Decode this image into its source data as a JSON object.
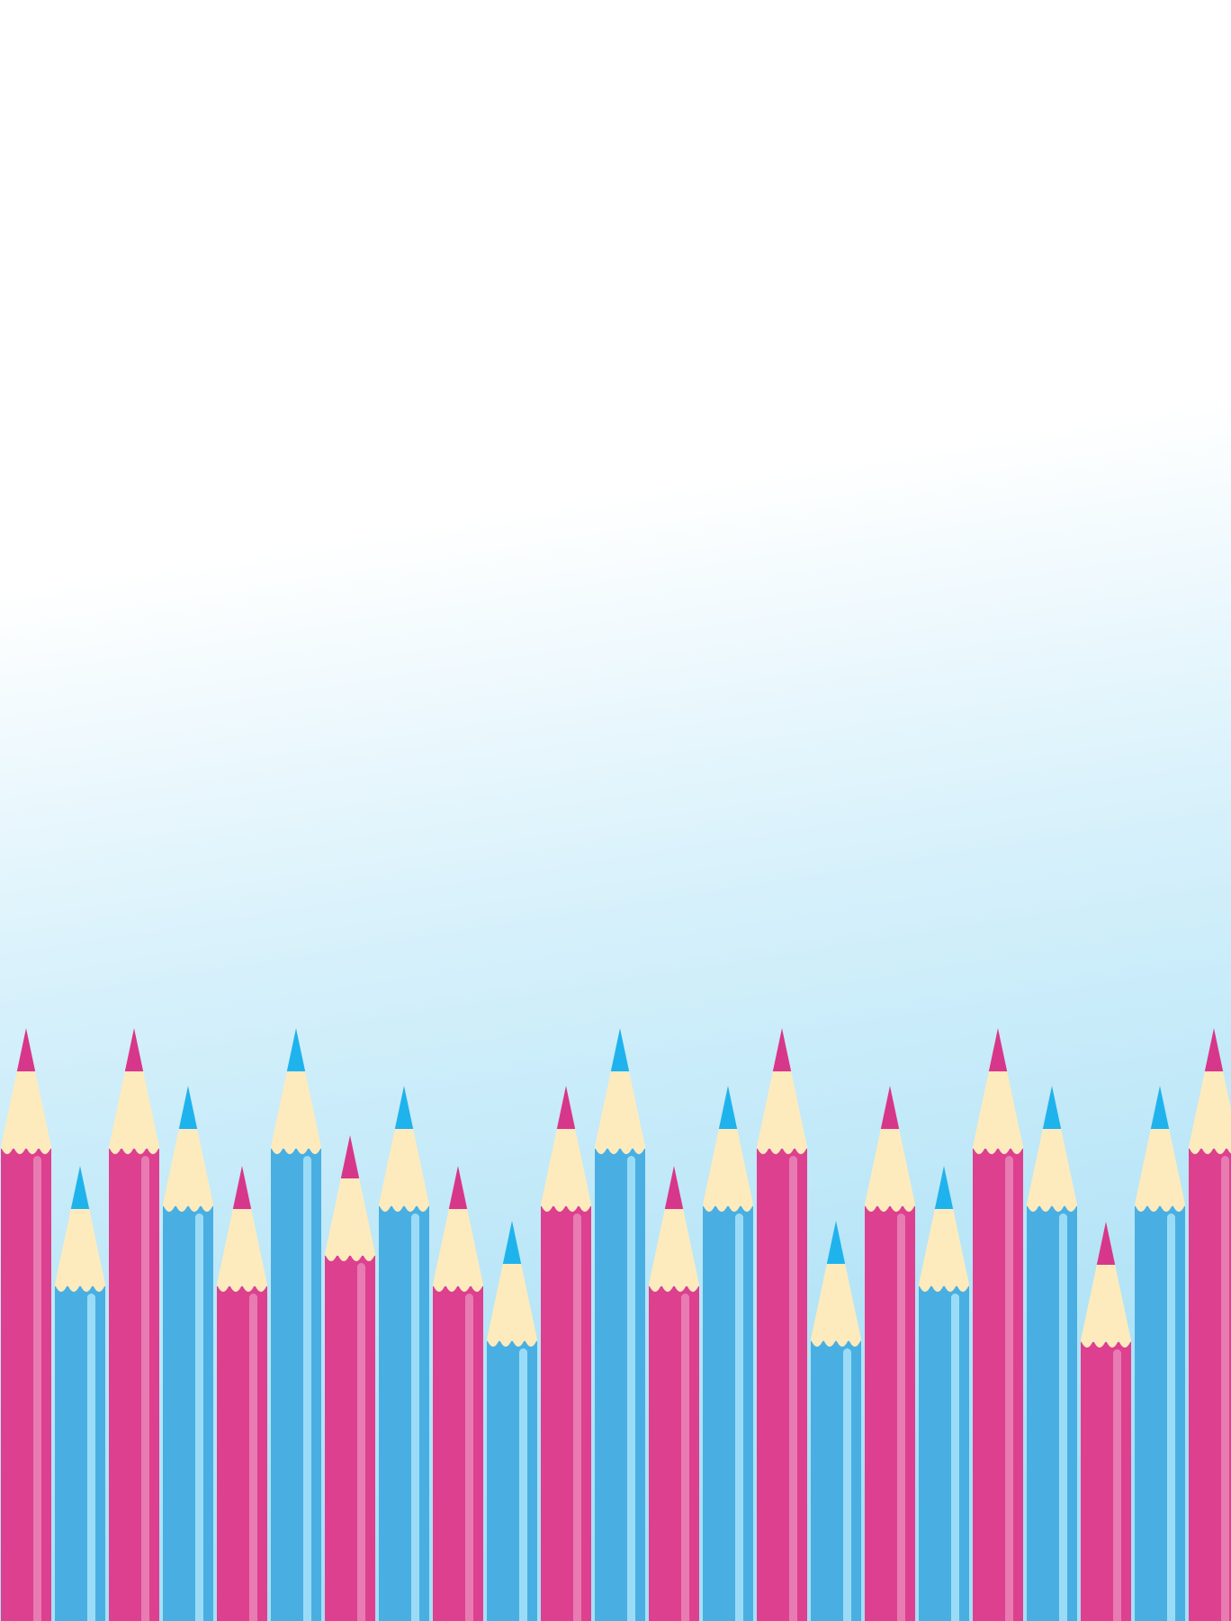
{
  "colors": {
    "sky_top": "#ffffff",
    "sky_bottom": "#a6dff5",
    "wood": "#fdebbd",
    "pink_body": "#dd408f",
    "pink_stripe": "#e87bb2",
    "blue_body": "#49afe3",
    "blue_stripe": "#9adcf7",
    "blue_tip": "#1fb3ee",
    "pink_tip": "#d7378a"
  },
  "pencils": [
    {
      "color": "pink",
      "icon": "pencil-icon"
    },
    {
      "color": "blue",
      "icon": "pencil-icon"
    },
    {
      "color": "pink",
      "icon": "pencil-icon"
    },
    {
      "color": "blue",
      "icon": "pencil-icon"
    },
    {
      "color": "pink",
      "icon": "pencil-icon"
    },
    {
      "color": "blue",
      "icon": "pencil-icon"
    },
    {
      "color": "pink",
      "icon": "pencil-icon"
    },
    {
      "color": "blue",
      "icon": "pencil-icon"
    },
    {
      "color": "pink",
      "icon": "pencil-icon"
    },
    {
      "color": "blue",
      "icon": "pencil-icon"
    },
    {
      "color": "pink",
      "icon": "pencil-icon"
    },
    {
      "color": "blue",
      "icon": "pencil-icon"
    },
    {
      "color": "pink",
      "icon": "pencil-icon"
    },
    {
      "color": "blue",
      "icon": "pencil-icon"
    },
    {
      "color": "pink",
      "icon": "pencil-icon"
    },
    {
      "color": "blue",
      "icon": "pencil-icon"
    },
    {
      "color": "pink",
      "icon": "pencil-icon"
    },
    {
      "color": "blue",
      "icon": "pencil-icon"
    },
    {
      "color": "pink",
      "icon": "pencil-icon"
    },
    {
      "color": "blue",
      "icon": "pencil-icon"
    },
    {
      "color": "pink",
      "icon": "pencil-icon"
    },
    {
      "color": "blue",
      "icon": "pencil-icon"
    },
    {
      "color": "pink",
      "icon": "pencil-icon"
    }
  ]
}
